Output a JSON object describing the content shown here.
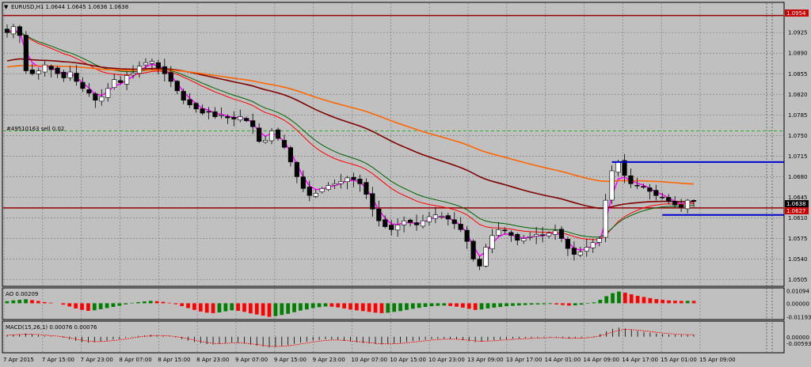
{
  "header": {
    "symbol_info": "EURUSD,H1  1.0644 1.0645 1.0636 1.0638",
    "order_label": "#49510163 sell 0.02"
  },
  "colors": {
    "background": "#c0c0c0",
    "bull_candle": "#ffffff",
    "bear_candle": "#000000",
    "ma_fast": "#ff00ff",
    "ma_red": "#ff0000",
    "ma_green": "#006400",
    "ma_dark_red": "#800000",
    "ma_orange": "#ff6600",
    "level_line": "#990000",
    "box_line": "#0000cc",
    "ao_up": "#008000",
    "ao_down": "#ff0000"
  },
  "price_labels": {
    "top_level": "1.0954",
    "current": "1.0638",
    "level": "1.0627"
  },
  "chart_data": [
    {
      "type": "candlestick",
      "title": "EURUSD,H1",
      "ylim": [
        1.0495,
        1.0975
      ],
      "y_ticks": [
        "1.0925",
        "1.0890",
        "1.0855",
        "1.0820",
        "1.0785",
        "1.0750",
        "1.0715",
        "1.0680",
        "1.0645",
        "1.0610",
        "1.0575",
        "1.0540",
        "1.0505"
      ],
      "x_ticks": [
        "7 Apr 2015",
        "7 Apr 15:00",
        "7 Apr 23:00",
        "8 Apr 07:00",
        "8 Apr 15:00",
        "8 Apr 23:00",
        "9 Apr 07:00",
        "9 Apr 15:00",
        "9 Apr 23:00",
        "10 Apr 07:00",
        "10 Apr 15:00",
        "10 Apr 23:00",
        "13 Apr 09:00",
        "13 Apr 17:00",
        "14 Apr 01:00",
        "14 Apr 09:00",
        "14 Apr 17:00",
        "15 Apr 01:00",
        "15 Apr 09:00"
      ],
      "horizontal_levels": [
        1.0954,
        1.0627
      ],
      "box": {
        "top": 1.0705,
        "bottom": 1.0615
      },
      "close_path": [
        1.0925,
        1.0935,
        1.092,
        1.086,
        1.0855,
        1.086,
        1.087,
        1.0862,
        1.0855,
        1.0848,
        1.0858,
        1.0842,
        1.083,
        1.0822,
        1.081,
        1.0816,
        1.083,
        1.0845,
        1.084,
        1.0852,
        1.0856,
        1.0868,
        1.0874,
        1.0876,
        1.0865,
        1.0855,
        1.0842,
        1.0826,
        1.081,
        1.0802,
        1.0795,
        1.0788,
        1.079,
        1.0782,
        1.0785,
        1.078,
        1.0778,
        1.0782,
        1.0775,
        1.0765,
        1.074,
        1.0742,
        1.0758,
        1.0745,
        1.073,
        1.0705,
        1.068,
        1.066,
        1.0648,
        1.0652,
        1.066,
        1.0665,
        1.0668,
        1.0672,
        1.0678,
        1.0675,
        1.0668,
        1.065,
        1.0625,
        1.0605,
        1.0595,
        1.059,
        1.0598,
        1.0605,
        1.0602,
        1.0598,
        1.0605,
        1.0612,
        1.0615,
        1.0613,
        1.0608,
        1.06,
        1.059,
        1.057,
        1.054,
        1.0528,
        1.056,
        1.058,
        1.059,
        1.0588,
        1.058,
        1.0572,
        1.0575,
        1.0578,
        1.0582,
        1.058,
        1.0584,
        1.0588,
        1.0575,
        1.0558,
        1.0548,
        1.0552,
        1.056,
        1.0568,
        1.0575,
        1.064,
        1.069,
        1.0705,
        1.0682,
        1.0668,
        1.0665,
        1.0662,
        1.0655,
        1.0648,
        1.0645,
        1.0638,
        1.0632,
        1.0628,
        1.064,
        1.0638
      ]
    },
    {
      "type": "bar",
      "title": "AO",
      "value_label": "AO 0.00209",
      "y_ticks": [
        "0.01094",
        "0.00000",
        "-0.01193"
      ],
      "ylim": [
        -0.0135,
        0.012
      ],
      "values": [
        0.0018,
        0.0025,
        0.003,
        0.0035,
        0.0028,
        0.002,
        0.001,
        0.0005,
        0.0,
        -0.0012,
        -0.0028,
        -0.0045,
        -0.0058,
        -0.0066,
        -0.0061,
        -0.0052,
        -0.0042,
        -0.0032,
        -0.0022,
        -0.001,
        0.0004,
        0.001,
        0.0016,
        0.0021,
        0.0018,
        0.0012,
        0.0004,
        -0.0008,
        -0.0025,
        -0.0042,
        -0.0058,
        -0.0072,
        -0.0082,
        -0.0086,
        -0.008,
        -0.007,
        -0.0062,
        -0.0066,
        -0.0075,
        -0.0088,
        -0.0098,
        -0.0108,
        -0.0118,
        -0.0112,
        -0.0102,
        -0.0092,
        -0.0078,
        -0.0064,
        -0.0054,
        -0.0042,
        -0.0034,
        -0.0028,
        -0.003,
        -0.0036,
        -0.0045,
        -0.0055,
        -0.0062,
        -0.0068,
        -0.0075,
        -0.0082,
        -0.0086,
        -0.0082,
        -0.0075,
        -0.0068,
        -0.0058,
        -0.0048,
        -0.004,
        -0.0032,
        -0.0026,
        -0.0022,
        -0.002,
        -0.0024,
        -0.003,
        -0.0038,
        -0.0048,
        -0.0058,
        -0.0054,
        -0.0045,
        -0.0038,
        -0.0032,
        -0.0026,
        -0.0022,
        -0.0019,
        -0.0015,
        -0.0012,
        -0.001,
        -0.0008,
        -0.0006,
        -0.001,
        -0.0015,
        -0.002,
        -0.0018,
        -0.0012,
        -0.0004,
        0.0008,
        0.003,
        0.0062,
        0.0088,
        0.0102,
        0.0092,
        0.0078,
        0.0065,
        0.0055,
        0.0045,
        0.0036,
        0.003,
        0.0025,
        0.0022,
        0.002,
        0.0021,
        0.00209
      ]
    },
    {
      "type": "bar",
      "title": "MACD",
      "value_label": "MACD(15,26,1) 0.00076 0.00076",
      "y_ticks": [
        "0.00000",
        "-0.00593"
      ]
    }
  ]
}
